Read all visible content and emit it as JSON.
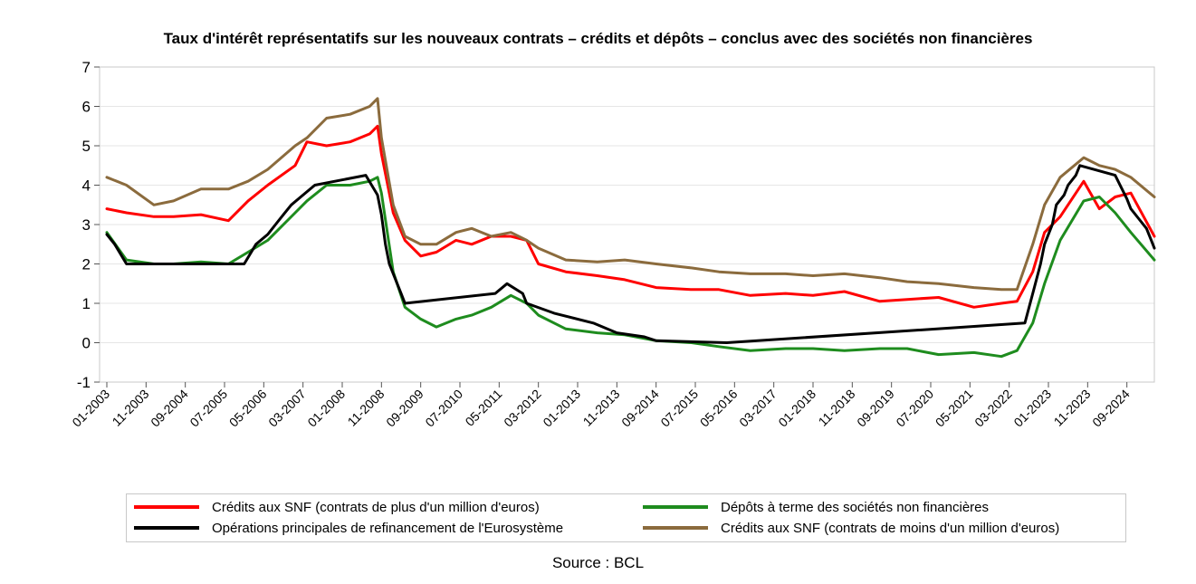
{
  "chart_data": {
    "type": "line",
    "title": "Taux d'intérêt représentatifs sur les nouveaux contrats – crédits et dépôts – conclus avec des sociétés non financières",
    "source": "Source : BCL",
    "xlabel": "",
    "ylabel": "",
    "ylim": [
      -1,
      7
    ],
    "yticks": [
      -1,
      0,
      1,
      2,
      3,
      4,
      5,
      6,
      7
    ],
    "grid": true,
    "legend_position": "bottom",
    "x_tick_labels": [
      "01-2003",
      "11-2003",
      "09-2004",
      "07-2005",
      "05-2006",
      "03-2007",
      "01-2008",
      "11-2008",
      "09-2009",
      "07-2010",
      "05-2011",
      "03-2012",
      "01-2013",
      "11-2013",
      "09-2014",
      "07-2015",
      "05-2016",
      "03-2017",
      "01-2018",
      "11-2018",
      "09-2019",
      "07-2020",
      "05-2021",
      "03-2022",
      "01-2023",
      "11-2023",
      "09-2024"
    ],
    "x_range": [
      "01-2003",
      "04-2025"
    ],
    "series": [
      {
        "name": "Crédits aux SNF (contrats de plus d'un million d'euros)",
        "color": "#ff0000",
        "points": [
          [
            "01-2003",
            3.4
          ],
          [
            "06-2003",
            3.3
          ],
          [
            "01-2004",
            3.2
          ],
          [
            "06-2004",
            3.2
          ],
          [
            "01-2005",
            3.25
          ],
          [
            "08-2005",
            3.1
          ],
          [
            "01-2006",
            3.6
          ],
          [
            "06-2006",
            4.0
          ],
          [
            "01-2007",
            4.5
          ],
          [
            "04-2007",
            5.1
          ],
          [
            "09-2007",
            5.0
          ],
          [
            "03-2008",
            5.1
          ],
          [
            "08-2008",
            5.3
          ],
          [
            "10-2008",
            5.5
          ],
          [
            "11-2008",
            4.8
          ],
          [
            "02-2009",
            3.3
          ],
          [
            "05-2009",
            2.6
          ],
          [
            "09-2009",
            2.2
          ],
          [
            "01-2010",
            2.3
          ],
          [
            "06-2010",
            2.6
          ],
          [
            "10-2010",
            2.5
          ],
          [
            "03-2011",
            2.7
          ],
          [
            "08-2011",
            2.7
          ],
          [
            "12-2011",
            2.6
          ],
          [
            "03-2012",
            2.0
          ],
          [
            "10-2012",
            1.8
          ],
          [
            "06-2013",
            1.7
          ],
          [
            "01-2014",
            1.6
          ],
          [
            "09-2014",
            1.4
          ],
          [
            "06-2015",
            1.35
          ],
          [
            "01-2016",
            1.35
          ],
          [
            "09-2016",
            1.2
          ],
          [
            "06-2017",
            1.25
          ],
          [
            "01-2018",
            1.2
          ],
          [
            "09-2018",
            1.3
          ],
          [
            "06-2019",
            1.05
          ],
          [
            "01-2020",
            1.1
          ],
          [
            "09-2020",
            1.15
          ],
          [
            "06-2021",
            0.9
          ],
          [
            "01-2022",
            1.0
          ],
          [
            "05-2022",
            1.05
          ],
          [
            "09-2022",
            1.8
          ],
          [
            "12-2022",
            2.8
          ],
          [
            "04-2023",
            3.2
          ],
          [
            "10-2023",
            4.1
          ],
          [
            "02-2024",
            3.4
          ],
          [
            "06-2024",
            3.7
          ],
          [
            "10-2024",
            3.8
          ],
          [
            "04-2025",
            2.7
          ]
        ]
      },
      {
        "name": "Dépôts à terme des sociétés non financières",
        "color": "#1e8c1e",
        "points": [
          [
            "01-2003",
            2.8
          ],
          [
            "06-2003",
            2.1
          ],
          [
            "01-2004",
            2.0
          ],
          [
            "06-2004",
            2.0
          ],
          [
            "01-2005",
            2.05
          ],
          [
            "08-2005",
            2.0
          ],
          [
            "01-2006",
            2.3
          ],
          [
            "06-2006",
            2.6
          ],
          [
            "01-2007",
            3.3
          ],
          [
            "04-2007",
            3.6
          ],
          [
            "09-2007",
            4.0
          ],
          [
            "03-2008",
            4.0
          ],
          [
            "08-2008",
            4.1
          ],
          [
            "10-2008",
            4.2
          ],
          [
            "11-2008",
            3.8
          ],
          [
            "02-2009",
            1.8
          ],
          [
            "05-2009",
            0.9
          ],
          [
            "09-2009",
            0.6
          ],
          [
            "01-2010",
            0.4
          ],
          [
            "06-2010",
            0.6
          ],
          [
            "10-2010",
            0.7
          ],
          [
            "03-2011",
            0.9
          ],
          [
            "08-2011",
            1.2
          ],
          [
            "12-2011",
            1.0
          ],
          [
            "03-2012",
            0.7
          ],
          [
            "10-2012",
            0.35
          ],
          [
            "06-2013",
            0.25
          ],
          [
            "01-2014",
            0.2
          ],
          [
            "09-2014",
            0.05
          ],
          [
            "06-2015",
            0.0
          ],
          [
            "01-2016",
            -0.1
          ],
          [
            "09-2016",
            -0.2
          ],
          [
            "06-2017",
            -0.15
          ],
          [
            "01-2018",
            -0.15
          ],
          [
            "09-2018",
            -0.2
          ],
          [
            "06-2019",
            -0.15
          ],
          [
            "01-2020",
            -0.15
          ],
          [
            "09-2020",
            -0.3
          ],
          [
            "06-2021",
            -0.25
          ],
          [
            "01-2022",
            -0.35
          ],
          [
            "05-2022",
            -0.2
          ],
          [
            "09-2022",
            0.5
          ],
          [
            "12-2022",
            1.5
          ],
          [
            "04-2023",
            2.6
          ],
          [
            "10-2023",
            3.6
          ],
          [
            "02-2024",
            3.7
          ],
          [
            "06-2024",
            3.3
          ],
          [
            "10-2024",
            2.8
          ],
          [
            "04-2025",
            2.1
          ]
        ]
      },
      {
        "name": "Opérations principales de refinancement de l'Eurosystème",
        "color": "#000000",
        "points": [
          [
            "01-2003",
            2.75
          ],
          [
            "03-2003",
            2.5
          ],
          [
            "06-2003",
            2.0
          ],
          [
            "12-2005",
            2.0
          ],
          [
            "03-2006",
            2.5
          ],
          [
            "06-2006",
            2.75
          ],
          [
            "08-2006",
            3.0
          ],
          [
            "10-2006",
            3.25
          ],
          [
            "12-2006",
            3.5
          ],
          [
            "03-2007",
            3.75
          ],
          [
            "06-2007",
            4.0
          ],
          [
            "07-2008",
            4.25
          ],
          [
            "10-2008",
            3.75
          ],
          [
            "11-2008",
            3.25
          ],
          [
            "12-2008",
            2.5
          ],
          [
            "01-2009",
            2.0
          ],
          [
            "03-2009",
            1.5
          ],
          [
            "04-2009",
            1.25
          ],
          [
            "05-2009",
            1.0
          ],
          [
            "04-2011",
            1.25
          ],
          [
            "07-2011",
            1.5
          ],
          [
            "11-2011",
            1.25
          ],
          [
            "12-2011",
            1.0
          ],
          [
            "07-2012",
            0.75
          ],
          [
            "05-2013",
            0.5
          ],
          [
            "11-2013",
            0.25
          ],
          [
            "06-2014",
            0.15
          ],
          [
            "09-2014",
            0.05
          ],
          [
            "03-2016",
            0.0
          ],
          [
            "07-2022",
            0.5
          ],
          [
            "09-2022",
            1.25
          ],
          [
            "11-2022",
            2.0
          ],
          [
            "12-2022",
            2.5
          ],
          [
            "02-2023",
            3.0
          ],
          [
            "03-2023",
            3.5
          ],
          [
            "05-2023",
            3.75
          ],
          [
            "06-2023",
            4.0
          ],
          [
            "08-2023",
            4.25
          ],
          [
            "09-2023",
            4.5
          ],
          [
            "06-2024",
            4.25
          ],
          [
            "09-2024",
            3.65
          ],
          [
            "10-2024",
            3.4
          ],
          [
            "12-2024",
            3.15
          ],
          [
            "02-2025",
            2.9
          ],
          [
            "03-2025",
            2.65
          ],
          [
            "04-2025",
            2.4
          ]
        ]
      },
      {
        "name": "Crédits aux SNF (contrats de moins d'un million d'euros)",
        "color": "#8b6b3d",
        "points": [
          [
            "01-2003",
            4.2
          ],
          [
            "06-2003",
            4.0
          ],
          [
            "01-2004",
            3.5
          ],
          [
            "06-2004",
            3.6
          ],
          [
            "01-2005",
            3.9
          ],
          [
            "08-2005",
            3.9
          ],
          [
            "01-2006",
            4.1
          ],
          [
            "06-2006",
            4.4
          ],
          [
            "01-2007",
            5.0
          ],
          [
            "04-2007",
            5.2
          ],
          [
            "09-2007",
            5.7
          ],
          [
            "03-2008",
            5.8
          ],
          [
            "08-2008",
            6.0
          ],
          [
            "10-2008",
            6.2
          ],
          [
            "11-2008",
            5.2
          ],
          [
            "02-2009",
            3.5
          ],
          [
            "05-2009",
            2.7
          ],
          [
            "09-2009",
            2.5
          ],
          [
            "01-2010",
            2.5
          ],
          [
            "06-2010",
            2.8
          ],
          [
            "10-2010",
            2.9
          ],
          [
            "03-2011",
            2.7
          ],
          [
            "08-2011",
            2.8
          ],
          [
            "12-2011",
            2.6
          ],
          [
            "03-2012",
            2.4
          ],
          [
            "10-2012",
            2.1
          ],
          [
            "06-2013",
            2.05
          ],
          [
            "01-2014",
            2.1
          ],
          [
            "09-2014",
            2.0
          ],
          [
            "06-2015",
            1.9
          ],
          [
            "01-2016",
            1.8
          ],
          [
            "09-2016",
            1.75
          ],
          [
            "06-2017",
            1.75
          ],
          [
            "01-2018",
            1.7
          ],
          [
            "09-2018",
            1.75
          ],
          [
            "06-2019",
            1.65
          ],
          [
            "01-2020",
            1.55
          ],
          [
            "09-2020",
            1.5
          ],
          [
            "06-2021",
            1.4
          ],
          [
            "01-2022",
            1.35
          ],
          [
            "05-2022",
            1.35
          ],
          [
            "09-2022",
            2.5
          ],
          [
            "12-2022",
            3.5
          ],
          [
            "04-2023",
            4.2
          ],
          [
            "10-2023",
            4.7
          ],
          [
            "02-2024",
            4.5
          ],
          [
            "06-2024",
            4.4
          ],
          [
            "10-2024",
            4.2
          ],
          [
            "04-2025",
            3.7
          ]
        ]
      }
    ]
  }
}
